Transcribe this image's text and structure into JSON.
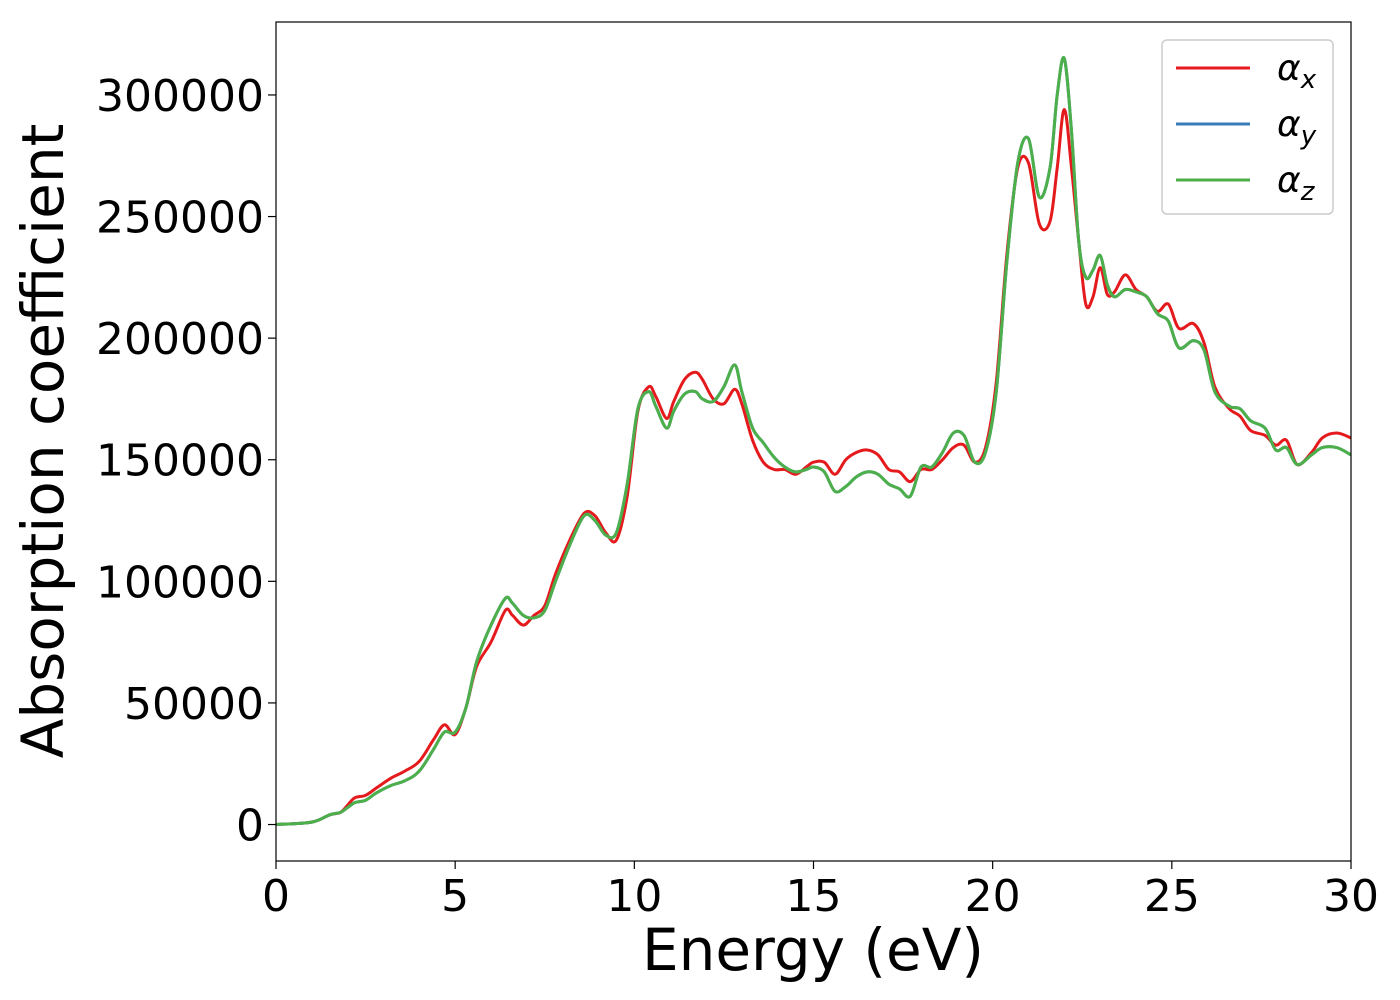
{
  "chart_data": {
    "type": "line",
    "xlabel": "Energy (eV)",
    "ylabel": "Absorption coefficient",
    "xlim": [
      0,
      30
    ],
    "ylim": [
      -15000,
      330000
    ],
    "xticks": [
      "0",
      "5",
      "10",
      "15",
      "20",
      "25",
      "30"
    ],
    "yticks": [
      "0",
      "50000",
      "100000",
      "150000",
      "200000",
      "250000",
      "300000"
    ],
    "grid": false,
    "legend_position": "top-right",
    "series": [
      {
        "name": "α_x",
        "legend_symbol": "α",
        "legend_sub": "x",
        "color": "#e41a1c",
        "x": [
          0,
          1.0,
          1.5,
          1.8,
          2.0,
          2.2,
          2.5,
          2.8,
          3.2,
          3.6,
          4.0,
          4.4,
          4.7,
          5.0,
          5.3,
          5.6,
          6.0,
          6.4,
          6.6,
          6.9,
          7.2,
          7.5,
          7.8,
          8.2,
          8.6,
          8.9,
          9.2,
          9.5,
          9.8,
          10.1,
          10.4,
          10.6,
          10.9,
          11.1,
          11.4,
          11.7,
          11.9,
          12.2,
          12.5,
          12.8,
          13.0,
          13.3,
          13.6,
          13.9,
          14.2,
          14.5,
          14.8,
          15.0,
          15.3,
          15.6,
          15.9,
          16.2,
          16.5,
          16.8,
          17.1,
          17.4,
          17.7,
          18.0,
          18.3,
          18.6,
          18.9,
          19.2,
          19.5,
          19.8,
          20.1,
          20.4,
          20.7,
          21.0,
          21.3,
          21.6,
          21.8,
          22.0,
          22.2,
          22.4,
          22.6,
          22.8,
          23.0,
          23.2,
          23.4,
          23.7,
          24.0,
          24.3,
          24.6,
          24.9,
          25.2,
          25.6,
          25.9,
          26.2,
          26.6,
          26.9,
          27.2,
          27.6,
          27.9,
          28.2,
          28.5,
          28.9,
          29.2,
          29.6,
          30.0
        ],
        "y": [
          0,
          1000,
          4000,
          5000,
          8000,
          11000,
          12000,
          15000,
          19000,
          22000,
          26000,
          35000,
          41000,
          37000,
          48000,
          65000,
          75000,
          88000,
          86000,
          82000,
          86000,
          90000,
          103000,
          117000,
          128000,
          127000,
          120000,
          117000,
          135000,
          170000,
          180000,
          176000,
          167000,
          174000,
          183000,
          186000,
          183000,
          175000,
          173000,
          179000,
          173000,
          158000,
          149000,
          146000,
          146000,
          144000,
          147000,
          149000,
          149000,
          144000,
          150000,
          153000,
          154000,
          152000,
          146000,
          145000,
          141000,
          146000,
          146000,
          150000,
          155000,
          156000,
          149000,
          155000,
          182000,
          235000,
          270000,
          272000,
          247000,
          248000,
          270000,
          294000,
          270000,
          240000,
          214000,
          217000,
          229000,
          218000,
          219000,
          226000,
          220000,
          217000,
          211000,
          214000,
          204000,
          206000,
          198000,
          180000,
          171000,
          168000,
          162000,
          160000,
          156000,
          158000,
          148000,
          153000,
          159000,
          161000,
          159000
        ]
      },
      {
        "name": "α_y",
        "legend_symbol": "α",
        "legend_sub": "y",
        "color": "#377eb8",
        "x": [
          0,
          1.0,
          1.5,
          1.8,
          2.0,
          2.2,
          2.5,
          2.8,
          3.2,
          3.6,
          4.0,
          4.4,
          4.7,
          5.0,
          5.3,
          5.6,
          6.0,
          6.4,
          6.6,
          6.9,
          7.2,
          7.5,
          7.8,
          8.2,
          8.6,
          8.9,
          9.2,
          9.5,
          9.8,
          10.1,
          10.4,
          10.6,
          10.9,
          11.1,
          11.4,
          11.7,
          11.9,
          12.2,
          12.5,
          12.8,
          13.0,
          13.3,
          13.6,
          13.9,
          14.2,
          14.5,
          14.8,
          15.0,
          15.3,
          15.6,
          15.9,
          16.2,
          16.5,
          16.8,
          17.1,
          17.4,
          17.7,
          18.0,
          18.3,
          18.6,
          18.9,
          19.2,
          19.5,
          19.8,
          20.1,
          20.4,
          20.7,
          21.0,
          21.3,
          21.6,
          21.8,
          22.0,
          22.2,
          22.4,
          22.6,
          22.8,
          23.0,
          23.2,
          23.4,
          23.7,
          24.0,
          24.3,
          24.6,
          24.9,
          25.2,
          25.6,
          25.9,
          26.2,
          26.6,
          26.9,
          27.2,
          27.6,
          27.9,
          28.2,
          28.5,
          28.9,
          29.2,
          29.6,
          30.0
        ],
        "y": [
          0,
          1000,
          4000,
          5000,
          7000,
          9000,
          10000,
          13000,
          16000,
          18000,
          22000,
          31000,
          38000,
          38000,
          48000,
          67000,
          82000,
          93000,
          91000,
          86000,
          85000,
          88000,
          100000,
          115000,
          127000,
          125000,
          119000,
          120000,
          140000,
          171000,
          178000,
          172000,
          163000,
          170000,
          177000,
          178000,
          175000,
          174000,
          180000,
          189000,
          178000,
          163000,
          157000,
          151000,
          147000,
          145000,
          146000,
          147000,
          145000,
          137000,
          139000,
          143000,
          145000,
          144000,
          140000,
          138000,
          135000,
          147000,
          147000,
          153000,
          161000,
          160000,
          149000,
          153000,
          178000,
          232000,
          272000,
          282000,
          258000,
          270000,
          300000,
          315000,
          285000,
          240000,
          225000,
          228000,
          234000,
          222000,
          217000,
          220000,
          219000,
          217000,
          210000,
          207000,
          196000,
          199000,
          195000,
          178000,
          172000,
          171000,
          166000,
          163000,
          154000,
          155000,
          148000,
          152000,
          155000,
          155000,
          152000
        ]
      },
      {
        "name": "α_z",
        "legend_symbol": "α",
        "legend_sub": "z",
        "color": "#4daf4a",
        "x": [
          0,
          1.0,
          1.5,
          1.8,
          2.0,
          2.2,
          2.5,
          2.8,
          3.2,
          3.6,
          4.0,
          4.4,
          4.7,
          5.0,
          5.3,
          5.6,
          6.0,
          6.4,
          6.6,
          6.9,
          7.2,
          7.5,
          7.8,
          8.2,
          8.6,
          8.9,
          9.2,
          9.5,
          9.8,
          10.1,
          10.4,
          10.6,
          10.9,
          11.1,
          11.4,
          11.7,
          11.9,
          12.2,
          12.5,
          12.8,
          13.0,
          13.3,
          13.6,
          13.9,
          14.2,
          14.5,
          14.8,
          15.0,
          15.3,
          15.6,
          15.9,
          16.2,
          16.5,
          16.8,
          17.1,
          17.4,
          17.7,
          18.0,
          18.3,
          18.6,
          18.9,
          19.2,
          19.5,
          19.8,
          20.1,
          20.4,
          20.7,
          21.0,
          21.3,
          21.6,
          21.8,
          22.0,
          22.2,
          22.4,
          22.6,
          22.8,
          23.0,
          23.2,
          23.4,
          23.7,
          24.0,
          24.3,
          24.6,
          24.9,
          25.2,
          25.6,
          25.9,
          26.2,
          26.6,
          26.9,
          27.2,
          27.6,
          27.9,
          28.2,
          28.5,
          28.9,
          29.2,
          29.6,
          30.0
        ],
        "y": [
          0,
          1000,
          4000,
          5000,
          7000,
          9000,
          10000,
          13000,
          16000,
          18000,
          22000,
          31000,
          38000,
          38000,
          48000,
          67000,
          82000,
          93000,
          91000,
          86000,
          85000,
          88000,
          100000,
          115000,
          127000,
          125000,
          119000,
          120000,
          140000,
          171000,
          178000,
          172000,
          163000,
          170000,
          177000,
          178000,
          175000,
          174000,
          180000,
          189000,
          178000,
          163000,
          157000,
          151000,
          147000,
          145000,
          146000,
          147000,
          145000,
          137000,
          139000,
          143000,
          145000,
          144000,
          140000,
          138000,
          135000,
          147000,
          147000,
          153000,
          161000,
          160000,
          149000,
          153000,
          178000,
          232000,
          272000,
          282000,
          258000,
          270000,
          300000,
          315000,
          285000,
          240000,
          225000,
          228000,
          234000,
          222000,
          217000,
          220000,
          219000,
          217000,
          210000,
          207000,
          196000,
          199000,
          195000,
          178000,
          172000,
          171000,
          166000,
          163000,
          154000,
          155000,
          148000,
          152000,
          155000,
          155000,
          152000
        ]
      }
    ]
  }
}
